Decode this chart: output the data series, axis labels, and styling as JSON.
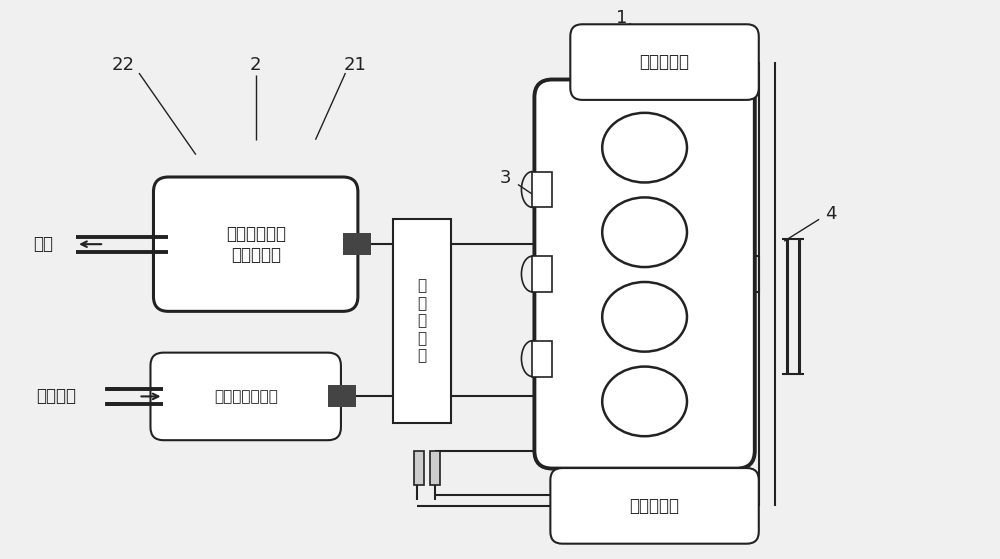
{
  "bg_color": "#f0f0f0",
  "line_color": "#222222",
  "box_fill": "#ffffff",
  "labels": {
    "exhaust": "尾气",
    "fresh_air": "新鲜空气",
    "scr": "选择性催化还\n原处理装置",
    "turbo": "涡\n轮\n增\n压\n器",
    "egr_valve": "废气循环阀",
    "intercooler": "中冷器装置",
    "air_filter": "进气空气滤清器"
  },
  "ref_numbers": {
    "n1": "1",
    "n2": "2",
    "n3": "3",
    "n4": "4",
    "n22": "22",
    "n21": "21"
  },
  "font_size": 12,
  "lw_main": 1.5,
  "lw_thick": 2.2
}
